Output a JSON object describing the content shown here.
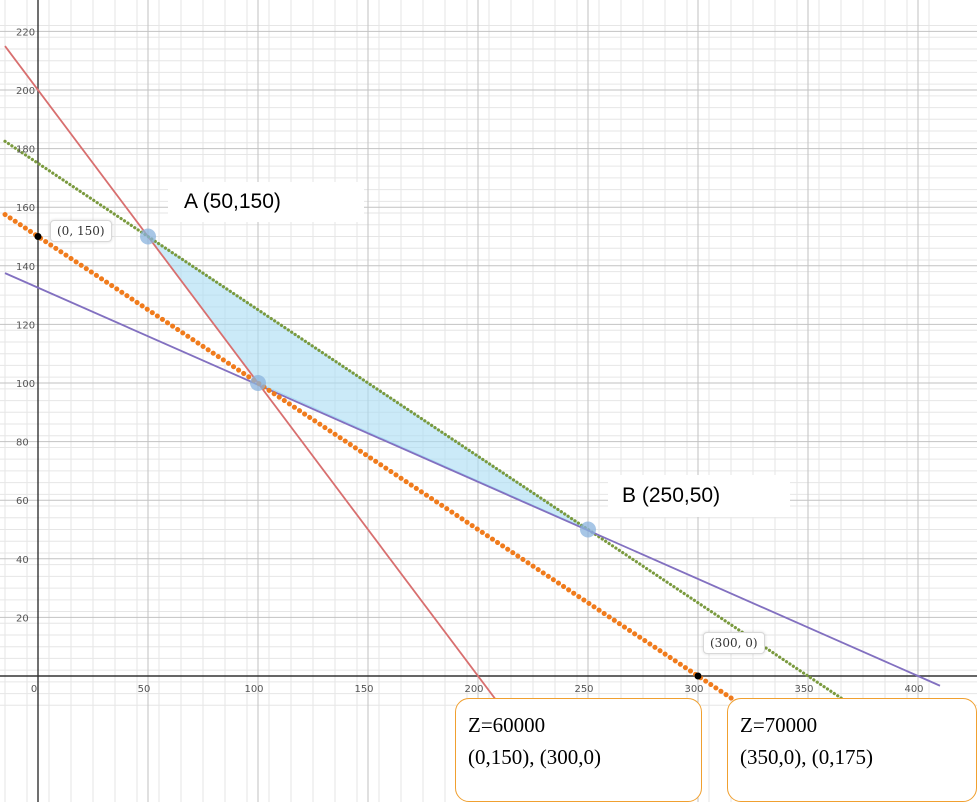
{
  "chart_data": {
    "type": "line",
    "title": "",
    "xlabel": "",
    "ylabel": "",
    "xlim": [
      -15,
      405
    ],
    "ylim": [
      -10,
      225
    ],
    "x_ticks": [
      0,
      50,
      100,
      150,
      200,
      250,
      300,
      350,
      400
    ],
    "y_ticks": [
      20,
      40,
      60,
      80,
      100,
      120,
      140,
      160,
      180,
      200,
      220
    ],
    "grid": true,
    "lines": [
      {
        "key": "red",
        "color": "#d86f6f",
        "dotted": false,
        "points": [
          [
            -15,
            215
          ],
          [
            215,
            -15
          ]
        ]
      },
      {
        "key": "green",
        "color": "#7a9a3e",
        "dotted": true,
        "points": [
          [
            -15,
            182.5
          ],
          [
            350,
            0
          ],
          [
            384,
            -17
          ]
        ]
      },
      {
        "key": "purple",
        "color": "#8270c0",
        "dotted": false,
        "points": [
          [
            -15,
            137.5
          ],
          [
            400,
            0
          ],
          [
            410,
            -3.33
          ]
        ]
      },
      {
        "key": "orange",
        "color": "#f07b1c",
        "dotted": true,
        "points": [
          [
            -15,
            157.5
          ],
          [
            300,
            0
          ],
          [
            340,
            -20
          ]
        ]
      }
    ],
    "feasible_region": {
      "color": "#a8dcf4",
      "vertices": [
        [
          50,
          150
        ],
        [
          100,
          100
        ],
        [
          250,
          50
        ]
      ]
    },
    "highlight_points": [
      [
        50,
        150
      ],
      [
        100,
        100
      ],
      [
        250,
        50
      ]
    ],
    "marked_points": [
      [
        0,
        150
      ],
      [
        300,
        0
      ]
    ]
  },
  "annotations": {
    "vertex_a": "A (50,150)",
    "vertex_b": "B (250,50)",
    "point_0_150": "(0, 150)",
    "point_300_0": "(300, 0)"
  },
  "z_boxes": [
    {
      "z": "Z=60000",
      "points": "(0,150), (300,0)"
    },
    {
      "z": "Z=70000",
      "points": "(350,0), (0,175)"
    }
  ]
}
